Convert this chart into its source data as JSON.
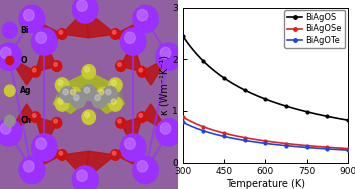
{
  "xlabel": "Temperature (K)",
  "ylabel": "κ (Wm⁻¹K⁻¹)",
  "xlim": [
    300,
    900
  ],
  "ylim": [
    0,
    3
  ],
  "xticks": [
    300,
    450,
    600,
    750,
    900
  ],
  "yticks": [
    0,
    1,
    2,
    3
  ],
  "series": {
    "BiAgOS": {
      "color": "black",
      "marker": "o",
      "t300": 2.45,
      "t900": 0.82
    },
    "BiAgOSe": {
      "color": "#dd2222",
      "marker": "o",
      "t300": 0.88,
      "t900": 0.27
    },
    "BiAgOTe": {
      "color": "#2244dd",
      "marker": "o",
      "t300": 0.78,
      "t900": 0.24
    }
  },
  "legend_labels": [
    "BiAgOS",
    "BiAgOSe",
    "BiAgOTe"
  ],
  "legend_colors": [
    "black",
    "#dd2222",
    "#2244dd"
  ],
  "crystal_bg": "#b87070",
  "bi_color": "#9b30ff",
  "o_color": "#cc1111",
  "ag_color": "#c8c832",
  "ch_color": "#909090",
  "legend_bi": "#9b30ff",
  "legend_o": "#cc1111",
  "legend_ag": "#c8c832",
  "legend_ch": "#909090",
  "right_bg": "#e8e8e8"
}
